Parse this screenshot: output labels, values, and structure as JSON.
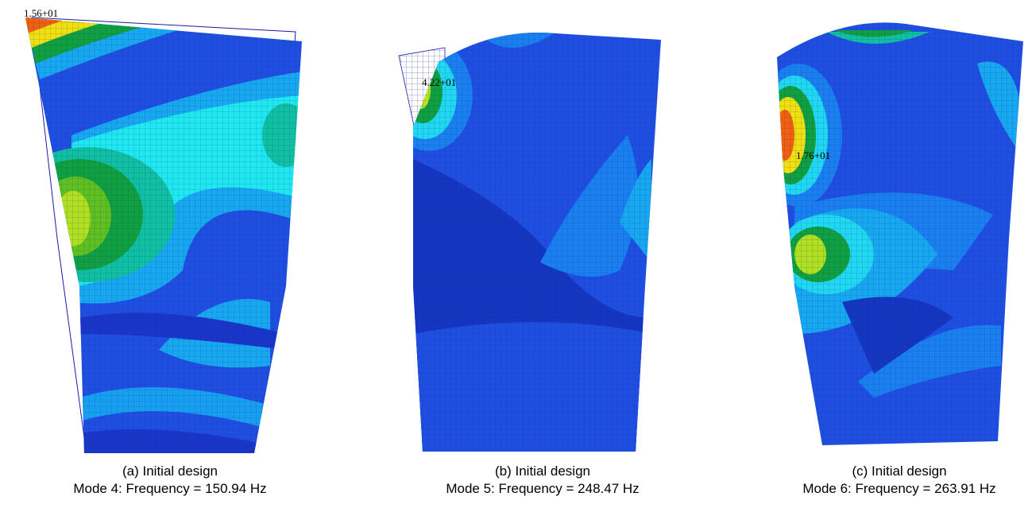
{
  "panels": [
    {
      "peak_label": "1.56+01",
      "caption": "(a) Initial design",
      "mode": "Mode 4: Frequency = 150.94 Hz"
    },
    {
      "peak_label": "4.22+01",
      "caption": "(b) Initial design",
      "mode": "Mode 5: Frequency = 248.47 Hz"
    },
    {
      "peak_label": "1.76+01",
      "caption": "(c) Initial design",
      "mode": "Mode 6: Frequency = 263.91 Hz"
    }
  ]
}
